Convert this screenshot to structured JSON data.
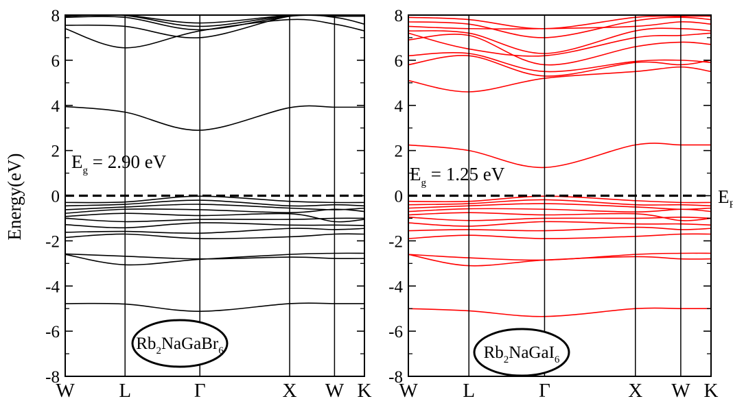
{
  "ylabel": "Energy(eV)",
  "right_edge_label": {
    "main": "E",
    "sub": "F"
  },
  "chart_data": [
    {
      "type": "line",
      "panel": "left",
      "material": {
        "parts": [
          [
            "Rb",
            ""
          ],
          [
            "2",
            "sub"
          ],
          [
            "NaGaBr",
            ""
          ],
          [
            "6",
            "sub"
          ]
        ]
      },
      "gap_label": {
        "main": "E",
        "sub": "g",
        "rest": " = 2.90 eV"
      },
      "ylim": [
        -8,
        8
      ],
      "yticks": [
        -8,
        -6,
        -4,
        -2,
        0,
        2,
        4,
        6,
        8
      ],
      "ytick_labels": [
        "-8",
        "-6",
        "-4",
        "-2",
        "0",
        "2",
        "4",
        "6",
        "8"
      ],
      "kpoints": [
        0,
        0.8,
        1.8,
        3.0,
        3.6,
        4.0
      ],
      "k_labels": [
        "W",
        "L",
        "Γ",
        "X",
        "W",
        "K"
      ],
      "band_color": "#000000",
      "fermi_level": 0,
      "bands": [
        [
          -4.78,
          -4.8,
          -5.12,
          -4.78,
          -4.78,
          -4.78
        ],
        [
          -2.58,
          -2.68,
          -2.8,
          -2.72,
          -2.78,
          -2.78
        ],
        [
          -2.6,
          -3.06,
          -2.82,
          -2.6,
          -2.55,
          -2.55
        ],
        [
          -1.85,
          -1.7,
          -1.9,
          -1.82,
          -1.7,
          -1.7
        ],
        [
          -1.62,
          -1.58,
          -1.66,
          -1.45,
          -1.5,
          -1.45
        ],
        [
          -1.28,
          -1.42,
          -1.2,
          -1.3,
          -1.3,
          -1.32
        ],
        [
          -1.0,
          -1.15,
          -1.05,
          -1.05,
          -1.0,
          -1.0
        ],
        [
          -0.92,
          -0.78,
          -0.88,
          -0.8,
          -1.15,
          -1.05
        ],
        [
          -0.78,
          -0.6,
          -0.62,
          -0.75,
          -0.6,
          -0.7
        ],
        [
          -0.62,
          -0.5,
          -0.38,
          -0.55,
          -0.62,
          -0.55
        ],
        [
          -0.45,
          -0.38,
          -0.2,
          -0.45,
          -0.4,
          -0.45
        ],
        [
          -0.3,
          -0.28,
          -0.02,
          -0.25,
          -0.3,
          -0.3
        ],
        [
          3.95,
          3.7,
          2.9,
          3.9,
          3.92,
          3.92
        ],
        [
          7.4,
          6.55,
          7.3,
          7.8,
          7.6,
          7.3
        ],
        [
          7.55,
          7.5,
          7.0,
          7.95,
          7.9,
          7.6
        ],
        [
          7.9,
          7.9,
          7.35,
          7.95,
          7.95,
          7.95
        ],
        [
          7.95,
          7.98,
          7.5,
          7.98,
          7.98,
          7.98
        ],
        [
          7.98,
          7.99,
          7.65,
          7.99,
          7.99,
          7.99
        ]
      ]
    },
    {
      "type": "line",
      "panel": "right",
      "material": {
        "parts": [
          [
            "Rb",
            ""
          ],
          [
            "2",
            "sub"
          ],
          [
            "NaGaI",
            ""
          ],
          [
            "6",
            "sub"
          ]
        ]
      },
      "gap_label": {
        "main": "E",
        "sub": "g",
        "rest": " = 1.25 eV"
      },
      "ylim": [
        -8,
        8
      ],
      "yticks": [
        -8,
        -6,
        -4,
        -2,
        0,
        2,
        4,
        6,
        8
      ],
      "ytick_labels": [
        "-8",
        "-6",
        "-4",
        "-2",
        "0",
        "2",
        "4",
        "6",
        "8"
      ],
      "kpoints": [
        0,
        0.8,
        1.8,
        3.0,
        3.6,
        4.0
      ],
      "k_labels": [
        "W",
        "L",
        "Γ",
        "X",
        "W",
        "K"
      ],
      "band_color": "#ff0000",
      "fermi_level": 0,
      "bands": [
        [
          -5.0,
          -5.1,
          -5.35,
          -5.0,
          -5.0,
          -5.0
        ],
        [
          -2.6,
          -2.75,
          -2.85,
          -2.6,
          -2.55,
          -2.55
        ],
        [
          -2.6,
          -3.1,
          -2.85,
          -2.7,
          -2.8,
          -2.8
        ],
        [
          -1.9,
          -1.75,
          -1.9,
          -1.8,
          -1.7,
          -1.7
        ],
        [
          -1.55,
          -1.5,
          -1.55,
          -1.4,
          -1.5,
          -1.45
        ],
        [
          -1.2,
          -1.35,
          -1.15,
          -1.25,
          -1.25,
          -1.3
        ],
        [
          -0.95,
          -1.1,
          -1.0,
          -1.0,
          -0.95,
          -1.0
        ],
        [
          -0.85,
          -0.75,
          -0.85,
          -0.8,
          -1.1,
          -1.0
        ],
        [
          -0.7,
          -0.58,
          -0.6,
          -0.72,
          -0.6,
          -0.7
        ],
        [
          -0.55,
          -0.45,
          -0.35,
          -0.5,
          -0.6,
          -0.55
        ],
        [
          -0.4,
          -0.35,
          -0.18,
          -0.4,
          -0.4,
          -0.45
        ],
        [
          -0.25,
          -0.25,
          -0.02,
          -0.22,
          -0.3,
          -0.3
        ],
        [
          2.25,
          2.0,
          1.25,
          2.25,
          2.25,
          2.25
        ],
        [
          5.1,
          4.6,
          5.2,
          5.5,
          5.7,
          5.5
        ],
        [
          5.8,
          6.2,
          5.3,
          5.9,
          5.8,
          6.0
        ],
        [
          6.2,
          6.3,
          5.5,
          5.95,
          6.0,
          5.9
        ],
        [
          6.9,
          7.1,
          5.8,
          6.6,
          6.8,
          6.7
        ],
        [
          7.2,
          6.5,
          6.2,
          7.0,
          7.1,
          7.2
        ],
        [
          7.3,
          7.2,
          6.3,
          7.3,
          7.4,
          7.3
        ],
        [
          7.5,
          7.4,
          7.4,
          7.5,
          7.7,
          7.6
        ],
        [
          7.7,
          7.6,
          7.0,
          7.75,
          7.9,
          7.8
        ],
        [
          7.9,
          7.8,
          7.4,
          7.9,
          7.95,
          7.95
        ]
      ]
    }
  ]
}
